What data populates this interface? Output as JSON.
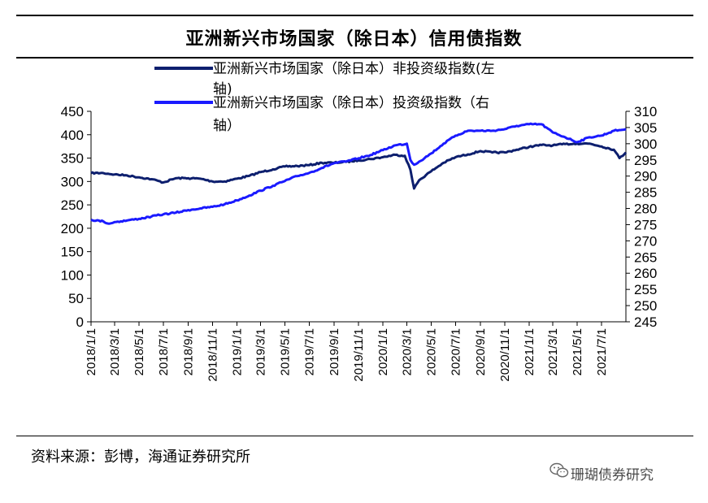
{
  "page": {
    "title": "亚洲新兴市场国家（除日本）信用债指数",
    "source": "资料来源：彭博，海通证券研究所",
    "watermark": "珊瑚债券研究",
    "watermark_icon": "wechat-icon"
  },
  "chart_data": {
    "type": "line",
    "title": "亚洲新兴市场国家（除日本）信用债指数",
    "x_ticks": [
      "2018/1/1",
      "2018/3/1",
      "2018/5/1",
      "2018/7/1",
      "2018/9/1",
      "2018/11/1",
      "2019/1/1",
      "2019/3/1",
      "2019/5/1",
      "2019/7/1",
      "2019/9/1",
      "2019/11/1",
      "2020/1/1",
      "2020/3/1",
      "2020/5/1",
      "2020/7/1",
      "2020/9/1",
      "2020/11/1",
      "2021/1/1",
      "2021/3/1",
      "2021/5/1",
      "2021/7/1"
    ],
    "y_left": {
      "min": 0,
      "max": 450,
      "ticks": [
        0,
        50,
        100,
        150,
        200,
        250,
        300,
        350,
        400,
        450
      ]
    },
    "y_right": {
      "min": 245,
      "max": 310,
      "ticks": [
        245,
        250,
        255,
        260,
        265,
        270,
        275,
        280,
        285,
        290,
        295,
        300,
        305,
        310
      ]
    },
    "legend_position": "top-left, inside plot",
    "grid": false,
    "series": [
      {
        "name": "亚洲新兴市场国家（除日本）非投资级指数(左轴)",
        "legend_lines": [
          "亚洲新兴市场国家（除日本）非投资级指数(左",
          "轴)"
        ],
        "axis": "left",
        "color": "#0d1f6e",
        "points": [
          [
            "2018/1/1",
            318
          ],
          [
            "2018/2/1",
            318
          ],
          [
            "2018/3/1",
            315
          ],
          [
            "2018/4/1",
            313
          ],
          [
            "2018/5/1",
            309
          ],
          [
            "2018/6/1",
            305
          ],
          [
            "2018/7/1",
            298
          ],
          [
            "2018/8/1",
            307
          ],
          [
            "2018/9/1",
            307
          ],
          [
            "2018/10/1",
            306
          ],
          [
            "2018/11/1",
            300
          ],
          [
            "2018/12/1",
            300
          ],
          [
            "2019/1/1",
            306
          ],
          [
            "2019/2/1",
            312
          ],
          [
            "2019/3/1",
            320
          ],
          [
            "2019/4/1",
            326
          ],
          [
            "2019/5/1",
            332
          ],
          [
            "2019/6/1",
            333
          ],
          [
            "2019/7/1",
            335
          ],
          [
            "2019/8/1",
            340
          ],
          [
            "2019/9/1",
            340
          ],
          [
            "2019/10/1",
            342
          ],
          [
            "2019/11/1",
            345
          ],
          [
            "2019/12/1",
            348
          ],
          [
            "2020/1/1",
            352
          ],
          [
            "2020/2/1",
            357
          ],
          [
            "2020/2/25",
            355
          ],
          [
            "2020/3/10",
            325
          ],
          [
            "2020/3/19",
            285
          ],
          [
            "2020/4/1",
            303
          ],
          [
            "2020/5/1",
            322
          ],
          [
            "2020/6/1",
            340
          ],
          [
            "2020/7/1",
            352
          ],
          [
            "2020/8/1",
            358
          ],
          [
            "2020/9/1",
            365
          ],
          [
            "2020/10/1",
            362
          ],
          [
            "2020/11/1",
            362
          ],
          [
            "2020/12/1",
            368
          ],
          [
            "2021/1/1",
            374
          ],
          [
            "2021/2/1",
            378
          ],
          [
            "2021/3/1",
            377
          ],
          [
            "2021/4/1",
            380
          ],
          [
            "2021/5/1",
            381
          ],
          [
            "2021/6/1",
            381
          ],
          [
            "2021/7/1",
            375
          ],
          [
            "2021/8/1",
            368
          ],
          [
            "2021/8/15",
            350
          ],
          [
            "2021/8/31",
            362
          ]
        ]
      },
      {
        "name": "亚洲新兴市场国家（除日本）投资级指数（右轴）",
        "legend_lines": [
          "亚洲新兴市场国家（除日本）投资级指数（右",
          "轴）"
        ],
        "axis": "right",
        "color": "#1a1aff",
        "points": [
          [
            "2018/1/1",
            276.5
          ],
          [
            "2018/2/1",
            276.0
          ],
          [
            "2018/2/15",
            275.3
          ],
          [
            "2018/3/1",
            275.8
          ],
          [
            "2018/4/1",
            276.3
          ],
          [
            "2018/5/1",
            276.8
          ],
          [
            "2018/6/1",
            277.5
          ],
          [
            "2018/7/1",
            278.2
          ],
          [
            "2018/8/1",
            278.7
          ],
          [
            "2018/9/1",
            279.5
          ],
          [
            "2018/10/1",
            280.0
          ],
          [
            "2018/11/1",
            280.5
          ],
          [
            "2018/12/1",
            281.3
          ],
          [
            "2019/1/1",
            282.5
          ],
          [
            "2019/2/1",
            284.0
          ],
          [
            "2019/3/1",
            285.5
          ],
          [
            "2019/4/1",
            287.0
          ],
          [
            "2019/5/1",
            288.5
          ],
          [
            "2019/6/1",
            290.0
          ],
          [
            "2019/7/1",
            291.0
          ],
          [
            "2019/8/1",
            292.5
          ],
          [
            "2019/9/1",
            294.0
          ],
          [
            "2019/10/1",
            294.5
          ],
          [
            "2019/11/1",
            295.5
          ],
          [
            "2019/12/1",
            296.5
          ],
          [
            "2020/1/1",
            298.0
          ],
          [
            "2020/2/1",
            299.5
          ],
          [
            "2020/3/1",
            300.0
          ],
          [
            "2020/3/10",
            295.0
          ],
          [
            "2020/3/19",
            293.5
          ],
          [
            "2020/4/1",
            294.5
          ],
          [
            "2020/5/1",
            297.0
          ],
          [
            "2020/6/1",
            300.0
          ],
          [
            "2020/7/1",
            302.5
          ],
          [
            "2020/8/1",
            304.0
          ],
          [
            "2020/9/1",
            304.0
          ],
          [
            "2020/10/1",
            304.0
          ],
          [
            "2020/11/1",
            304.5
          ],
          [
            "2020/12/1",
            305.5
          ],
          [
            "2021/1/1",
            306.0
          ],
          [
            "2021/2/1",
            306.0
          ],
          [
            "2021/3/1",
            303.5
          ],
          [
            "2021/4/1",
            302.0
          ],
          [
            "2021/5/1",
            300.5
          ],
          [
            "2021/6/1",
            302.0
          ],
          [
            "2021/7/1",
            302.5
          ],
          [
            "2021/8/1",
            304.0
          ],
          [
            "2021/8/31",
            304.5
          ]
        ]
      }
    ]
  }
}
